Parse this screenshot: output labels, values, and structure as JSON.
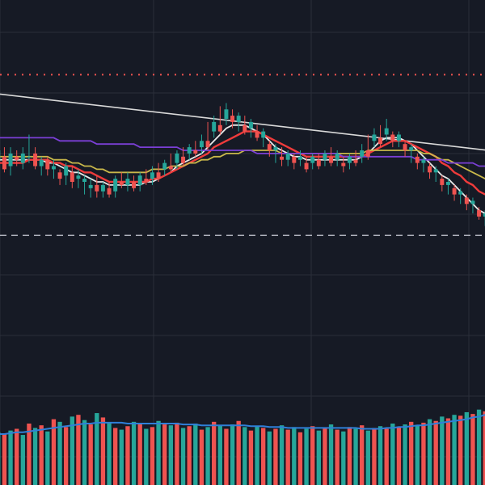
{
  "colors": {
    "background": "#161a25",
    "grid": "#2a2e39",
    "up": "#26a69a",
    "down": "#ef5350",
    "volume_up": "#26a69a",
    "volume_down": "#ef5350",
    "ma_white": "#e8e8e8",
    "ma_red": "#ef3b3b",
    "ma_yellow": "#c9b84a",
    "ma_purple": "#7b3fd6",
    "volume_ma": "#2f7fd8",
    "trendline": "#d9d9d9",
    "resistance_dotted": "#ef5350",
    "support_dashed": "#b0b3bd"
  },
  "chart_data": {
    "type": "candlestick",
    "title": "",
    "xlabel": "",
    "ylabel": "",
    "grid": true,
    "legend": "none",
    "ylim": [
      0,
      100
    ],
    "volume_ylim": [
      0,
      100
    ],
    "reference_lines": {
      "dotted_resistance": 84,
      "dashed_support": 33
    },
    "trendline": {
      "start": [
        0,
        78
      ],
      "end": [
        100,
        60
      ]
    },
    "candles": [
      [
        57,
        60,
        54,
        53,
        62
      ],
      [
        58,
        54,
        60,
        53,
        61
      ],
      [
        55,
        59,
        53,
        52,
        61
      ],
      [
        58,
        57,
        57,
        55,
        60
      ],
      [
        56,
        59,
        55,
        54,
        61
      ],
      [
        58,
        58,
        60,
        56,
        65
      ],
      [
        59,
        55,
        59,
        54,
        61
      ],
      [
        55,
        57,
        53,
        52,
        58
      ],
      [
        57,
        54,
        56,
        52,
        58
      ],
      [
        54,
        55,
        52,
        51,
        57
      ],
      [
        53,
        51,
        52,
        49,
        54
      ],
      [
        52,
        55,
        50,
        49,
        56
      ],
      [
        53,
        50,
        54,
        48,
        55
      ],
      [
        51,
        52,
        49,
        48,
        54
      ],
      [
        50,
        51,
        47,
        46,
        52
      ],
      [
        48,
        49,
        46,
        45,
        51
      ],
      [
        49,
        47,
        51,
        45,
        52
      ],
      [
        47,
        49,
        47,
        45,
        50
      ],
      [
        48,
        46,
        49,
        45,
        50
      ],
      [
        47,
        51,
        46,
        45,
        52
      ],
      [
        50,
        49,
        52,
        48,
        53
      ],
      [
        49,
        51,
        48,
        47,
        53
      ],
      [
        50,
        48,
        51,
        47,
        52
      ],
      [
        49,
        52,
        48,
        47,
        53
      ],
      [
        51,
        50,
        52,
        49,
        54
      ],
      [
        51,
        53,
        50,
        49,
        55
      ],
      [
        53,
        51,
        55,
        50,
        56
      ],
      [
        54,
        56,
        53,
        52,
        57
      ],
      [
        55,
        54,
        57,
        53,
        59
      ],
      [
        56,
        59,
        55,
        54,
        60
      ],
      [
        58,
        56,
        60,
        55,
        61
      ],
      [
        59,
        61,
        58,
        57,
        62
      ],
      [
        60,
        59,
        62,
        58,
        63
      ],
      [
        61,
        63,
        60,
        59,
        65
      ],
      [
        63,
        61,
        67,
        60,
        69
      ],
      [
        66,
        69,
        65,
        64,
        71
      ],
      [
        68,
        66,
        72,
        65,
        74
      ],
      [
        70,
        73,
        69,
        68,
        75
      ],
      [
        71,
        69,
        70,
        67,
        73
      ],
      [
        69,
        71,
        68,
        66,
        72
      ],
      [
        68,
        66,
        70,
        65,
        71
      ],
      [
        67,
        69,
        65,
        64,
        70
      ],
      [
        66,
        64,
        67,
        63,
        68
      ],
      [
        64,
        66,
        62,
        61,
        67
      ],
      [
        62,
        60,
        61,
        58,
        63
      ],
      [
        60,
        61,
        58,
        56,
        62
      ],
      [
        58,
        57,
        59,
        55,
        61
      ],
      [
        57,
        59,
        56,
        55,
        60
      ],
      [
        58,
        56,
        57,
        54,
        59
      ],
      [
        57,
        58,
        56,
        55,
        60
      ],
      [
        56,
        54,
        57,
        53,
        58
      ],
      [
        56,
        58,
        55,
        54,
        59
      ],
      [
        57,
        55,
        58,
        54,
        59
      ],
      [
        57,
        59,
        56,
        55,
        60
      ],
      [
        58,
        56,
        59,
        55,
        61
      ],
      [
        57,
        59,
        56,
        55,
        60
      ],
      [
        56,
        55,
        57,
        53,
        58
      ],
      [
        56,
        58,
        55,
        54,
        59
      ],
      [
        57,
        56,
        59,
        55,
        60
      ],
      [
        58,
        60,
        57,
        56,
        62
      ],
      [
        60,
        58,
        63,
        57,
        65
      ],
      [
        63,
        65,
        62,
        61,
        67
      ],
      [
        64,
        62,
        66,
        61,
        68
      ],
      [
        65,
        67,
        64,
        63,
        70
      ],
      [
        65,
        63,
        64,
        61,
        66
      ],
      [
        63,
        65,
        62,
        61,
        66
      ],
      [
        62,
        60,
        61,
        58,
        63
      ],
      [
        60,
        61,
        58,
        56,
        62
      ],
      [
        58,
        56,
        57,
        54,
        59
      ],
      [
        56,
        57,
        54,
        53,
        58
      ],
      [
        55,
        53,
        54,
        51,
        56
      ],
      [
        53,
        54,
        51,
        50,
        55
      ],
      [
        51,
        49,
        50,
        47,
        52
      ],
      [
        49,
        50,
        48,
        46,
        51
      ],
      [
        48,
        46,
        47,
        44,
        49
      ],
      [
        46,
        47,
        44,
        43,
        48
      ],
      [
        45,
        43,
        44,
        41,
        46
      ],
      [
        43,
        44,
        41,
        40,
        45
      ],
      [
        41,
        39,
        40,
        38,
        42
      ],
      [
        39,
        40,
        37,
        36,
        41
      ]
    ],
    "volume": [
      [
        40,
        1
      ],
      [
        38,
        0
      ],
      [
        42,
        1
      ],
      [
        44,
        0
      ],
      [
        37,
        1
      ],
      [
        50,
        0
      ],
      [
        45,
        1
      ],
      [
        48,
        0
      ],
      [
        41,
        1
      ],
      [
        55,
        0
      ],
      [
        52,
        1
      ],
      [
        46,
        0
      ],
      [
        58,
        1
      ],
      [
        60,
        0
      ],
      [
        54,
        1
      ],
      [
        49,
        0
      ],
      [
        62,
        1
      ],
      [
        57,
        0
      ],
      [
        51,
        1
      ],
      [
        45,
        0
      ],
      [
        43,
        1
      ],
      [
        47,
        0
      ],
      [
        52,
        1
      ],
      [
        50,
        0
      ],
      [
        44,
        1
      ],
      [
        46,
        0
      ],
      [
        53,
        1
      ],
      [
        49,
        0
      ],
      [
        48,
        1
      ],
      [
        51,
        0
      ],
      [
        45,
        1
      ],
      [
        47,
        0
      ],
      [
        50,
        1
      ],
      [
        43,
        0
      ],
      [
        46,
        1
      ],
      [
        52,
        0
      ],
      [
        48,
        1
      ],
      [
        44,
        0
      ],
      [
        49,
        1
      ],
      [
        53,
        0
      ],
      [
        46,
        1
      ],
      [
        42,
        0
      ],
      [
        47,
        1
      ],
      [
        45,
        0
      ],
      [
        41,
        1
      ],
      [
        44,
        0
      ],
      [
        48,
        1
      ],
      [
        43,
        0
      ],
      [
        46,
        1
      ],
      [
        40,
        0
      ],
      [
        44,
        1
      ],
      [
        47,
        0
      ],
      [
        42,
        1
      ],
      [
        45,
        0
      ],
      [
        49,
        1
      ],
      [
        43,
        0
      ],
      [
        41,
        1
      ],
      [
        46,
        0
      ],
      [
        44,
        1
      ],
      [
        48,
        0
      ],
      [
        42,
        1
      ],
      [
        45,
        0
      ],
      [
        47,
        1
      ],
      [
        44,
        0
      ],
      [
        50,
        1
      ],
      [
        46,
        0
      ],
      [
        49,
        1
      ],
      [
        52,
        0
      ],
      [
        48,
        1
      ],
      [
        51,
        0
      ],
      [
        55,
        1
      ],
      [
        53,
        0
      ],
      [
        58,
        1
      ],
      [
        56,
        0
      ],
      [
        60,
        1
      ],
      [
        59,
        0
      ],
      [
        63,
        1
      ],
      [
        61,
        0
      ],
      [
        66,
        1
      ],
      [
        64,
        0
      ]
    ],
    "moving_averages": [
      {
        "name": "",
        "color": "#e8e8e8",
        "values": [
          57,
          57,
          57,
          57,
          57,
          57,
          57,
          57,
          56,
          56,
          55,
          54,
          53,
          53,
          52,
          51,
          50,
          50,
          49,
          49,
          49,
          49,
          49,
          49,
          50,
          50,
          51,
          52,
          53,
          55,
          56,
          57,
          58,
          59,
          61,
          63,
          65,
          67,
          68,
          68,
          68,
          67,
          66,
          65,
          63,
          61,
          60,
          59,
          58,
          58,
          57,
          57,
          57,
          57,
          57,
          57,
          57,
          57,
          57,
          58,
          59,
          61,
          63,
          64,
          64,
          64,
          63,
          62,
          60,
          58,
          56,
          54,
          52,
          51,
          49,
          47,
          45,
          43,
          41,
          40
        ]
      },
      {
        "name": "",
        "color": "#ef3b3b",
        "values": [
          56,
          56,
          56,
          56,
          56,
          57,
          57,
          57,
          57,
          56,
          56,
          55,
          55,
          54,
          53,
          53,
          52,
          51,
          50,
          50,
          50,
          50,
          50,
          50,
          50,
          51,
          51,
          52,
          53,
          54,
          55,
          56,
          57,
          58,
          59,
          61,
          62,
          63,
          64,
          65,
          66,
          66,
          66,
          65,
          64,
          63,
          62,
          61,
          60,
          59,
          58,
          58,
          58,
          58,
          58,
          58,
          58,
          58,
          58,
          58,
          59,
          60,
          61,
          62,
          63,
          63,
          63,
          62,
          61,
          60,
          59,
          58,
          56,
          55,
          53,
          52,
          50,
          49,
          47,
          46
        ]
      },
      {
        "name": "",
        "color": "#c9b84a",
        "values": [
          58,
          58,
          58,
          58,
          58,
          58,
          58,
          58,
          58,
          57,
          57,
          57,
          56,
          56,
          55,
          55,
          54,
          54,
          53,
          53,
          53,
          53,
          53,
          53,
          53,
          54,
          54,
          54,
          55,
          55,
          55,
          56,
          56,
          57,
          57,
          58,
          58,
          59,
          59,
          59,
          60,
          60,
          60,
          60,
          60,
          60,
          59,
          59,
          59,
          59,
          59,
          59,
          59,
          59,
          59,
          59,
          59,
          59,
          59,
          59,
          60,
          60,
          60,
          60,
          60,
          60,
          60,
          60,
          60,
          59,
          59,
          58,
          57,
          57,
          56,
          55,
          54,
          53,
          52,
          51
        ]
      },
      {
        "name": "",
        "color": "#7b3fd6",
        "values": [
          64,
          64,
          64,
          64,
          64,
          64,
          64,
          64,
          64,
          64,
          63,
          63,
          63,
          63,
          63,
          63,
          62,
          62,
          62,
          62,
          62,
          62,
          62,
          61,
          61,
          61,
          61,
          61,
          61,
          61,
          60,
          60,
          60,
          60,
          60,
          60,
          60,
          60,
          60,
          60,
          60,
          60,
          59,
          59,
          59,
          59,
          59,
          59,
          59,
          59,
          59,
          59,
          59,
          59,
          59,
          59,
          58,
          58,
          58,
          58,
          58,
          58,
          58,
          58,
          58,
          58,
          58,
          58,
          57,
          57,
          57,
          57,
          57,
          56,
          56,
          56,
          56,
          56,
          55,
          55
        ]
      }
    ],
    "volume_ma": [
      38,
      38,
      39,
      40,
      40,
      41,
      42,
      43,
      44,
      45,
      46,
      47,
      48,
      49,
      50,
      50,
      51,
      51,
      51,
      51,
      51,
      50,
      50,
      50,
      50,
      50,
      50,
      50,
      50,
      50,
      49,
      49,
      49,
      48,
      48,
      48,
      48,
      48,
      48,
      48,
      48,
      47,
      47,
      47,
      46,
      46,
      46,
      45,
      45,
      45,
      45,
      45,
      45,
      45,
      45,
      45,
      45,
      45,
      45,
      44,
      44,
      44,
      44,
      45,
      45,
      46,
      46,
      47,
      48,
      48,
      49,
      50,
      51,
      52,
      53,
      54,
      55,
      57,
      58,
      60
    ]
  }
}
